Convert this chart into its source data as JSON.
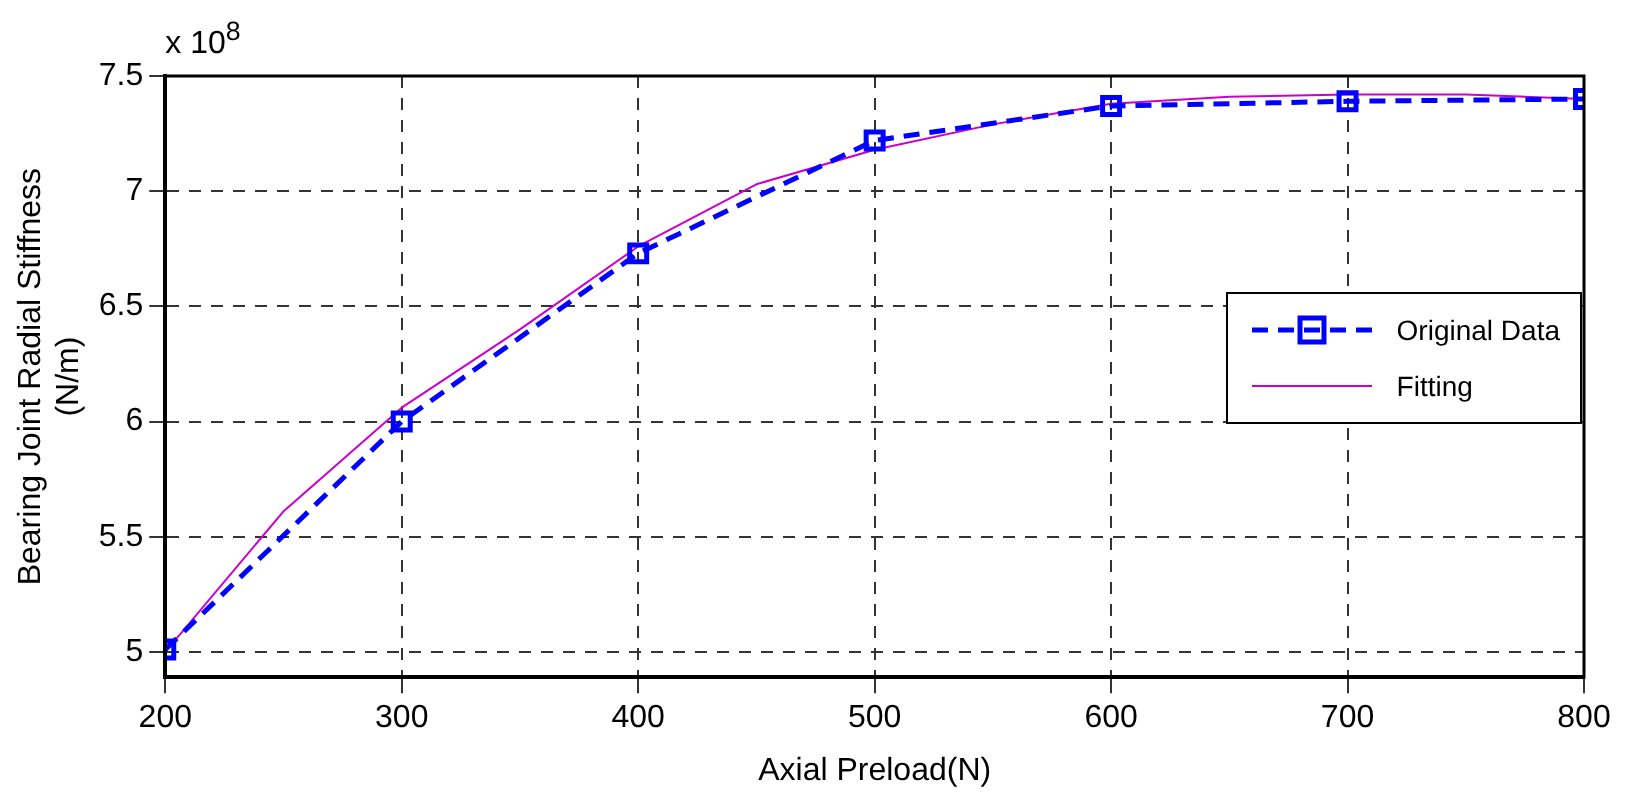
{
  "chart_data": {
    "type": "line",
    "xlabel": "Axial Preload(N)",
    "ylabel": "Bearing Joint Radial Stiffness\n(N/m)",
    "annotations": [
      "x 10$^{8}$"
    ],
    "xlim": [
      200,
      800
    ],
    "xticks": [
      200,
      300,
      400,
      500,
      600,
      700,
      800
    ],
    "ylim": [
      4.89,
      7.5
    ],
    "yticks": [
      5,
      5.5,
      6,
      6.5,
      7,
      7.5
    ],
    "grid": true,
    "legend": "right",
    "series": [
      {
        "name": "Original Data",
        "color": "#0000ff",
        "marker": "square",
        "line_style": "dashed",
        "x": [
          200,
          300,
          400,
          500,
          600,
          700,
          800
        ],
        "values": [
          5.01,
          6.0,
          6.73,
          7.22,
          7.37,
          7.39,
          7.4
        ]
      },
      {
        "name": "Fitting",
        "color": "#cc00cc",
        "marker": "none",
        "line_style": "solid",
        "x": [
          200,
          250,
          300,
          350,
          400,
          450,
          500,
          550,
          600,
          650,
          700,
          750,
          800
        ],
        "values": [
          5.0,
          5.61,
          6.06,
          6.4,
          6.76,
          7.03,
          7.18,
          7.29,
          7.38,
          7.41,
          7.42,
          7.42,
          7.4
        ]
      }
    ]
  }
}
